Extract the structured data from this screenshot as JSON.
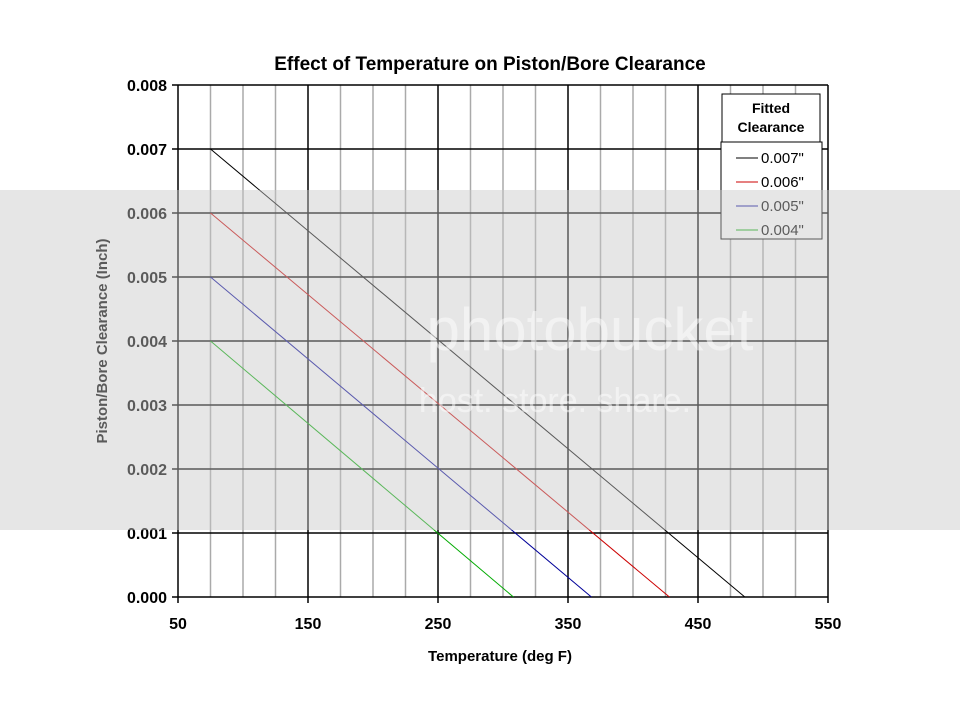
{
  "chart_data": {
    "type": "line",
    "title": "Effect of Temperature on Piston/Bore Clearance",
    "xlabel": "Temperature (deg F)",
    "ylabel": "Piston/Bore Clearance (Inch)",
    "xlim": [
      50,
      550
    ],
    "ylim": [
      0,
      0.008
    ],
    "x_ticks": [
      50,
      150,
      250,
      350,
      450,
      550
    ],
    "x_tick_labels": [
      "50",
      "150",
      "250",
      "350",
      "450",
      "550"
    ],
    "x_minor_step": 25,
    "y_ticks": [
      0,
      0.001,
      0.002,
      0.003,
      0.004,
      0.005,
      0.006,
      0.007,
      0.008
    ],
    "y_tick_labels": [
      "0.000",
      "0.001",
      "0.002",
      "0.003",
      "0.004",
      "0.005",
      "0.006",
      "0.007",
      "0.008"
    ],
    "grid": true,
    "legend": {
      "title_line1": "Fitted",
      "title_line2": "Clearance",
      "placement": "top-right"
    },
    "series": [
      {
        "name": "0.007\"",
        "color": "#000000",
        "x": [
          75,
          486
        ],
        "y": [
          0.007,
          0.0
        ]
      },
      {
        "name": "0.006\"",
        "color": "#cc0000",
        "x": [
          75,
          428
        ],
        "y": [
          0.006,
          0.0
        ]
      },
      {
        "name": "0.005\"",
        "color": "#000099",
        "x": [
          75,
          368
        ],
        "y": [
          0.005,
          0.0
        ]
      },
      {
        "name": "0.004\"",
        "color": "#00aa00",
        "x": [
          75,
          308
        ],
        "y": [
          0.004,
          0.0
        ]
      }
    ]
  },
  "watermark": {
    "line1": "photobucket",
    "line2": "host. store. share."
  }
}
